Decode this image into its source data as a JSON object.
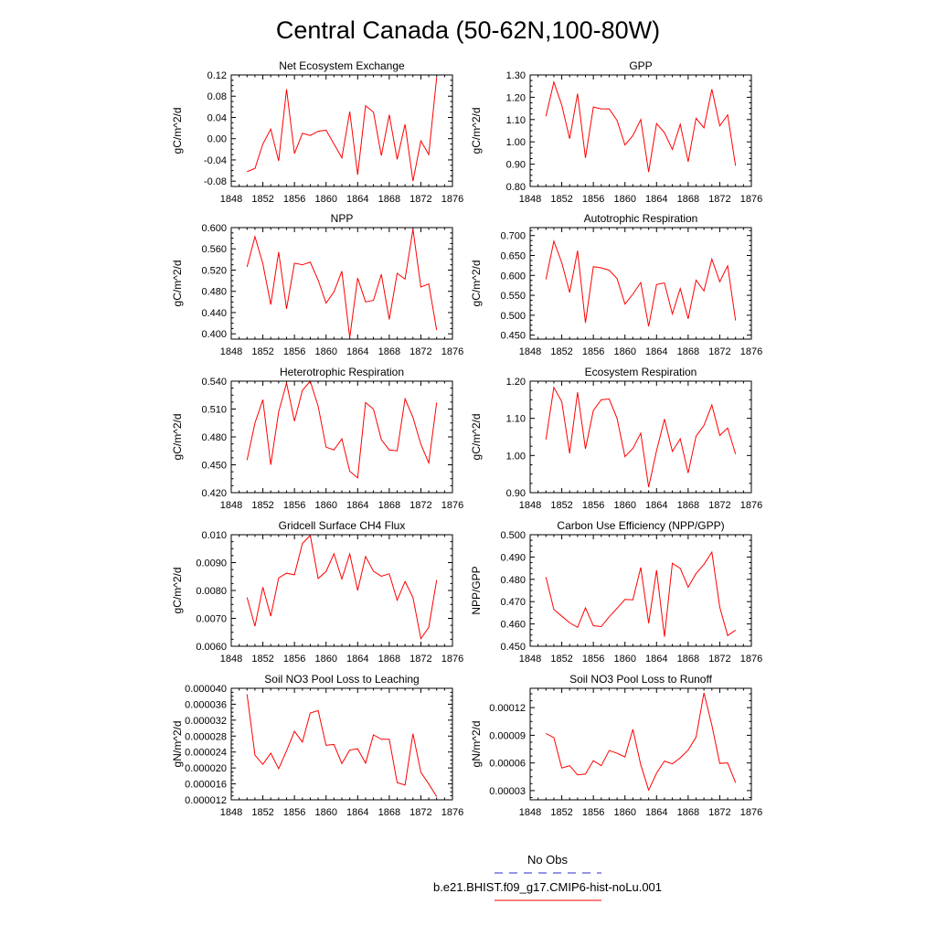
{
  "title": "Central Canada (50-62N,100-80W)",
  "colors": {
    "model": "#ff0000",
    "obs": "#2b2bd0",
    "axis": "#000000"
  },
  "legend": {
    "obs_label": "No Obs",
    "model_label": "b.e21.BHIST.f09_g17.CMIP6-hist-noLu.001"
  },
  "chart_data": [
    {
      "type": "line",
      "title": "Net Ecosystem Exchange",
      "xlabel": "",
      "ylabel": "gC/m^2/d",
      "xlim": [
        1848,
        1876
      ],
      "xticks": [
        "1848",
        "1852",
        "1856",
        "1860",
        "1864",
        "1868",
        "1872",
        "1876"
      ],
      "ylim": [
        -0.09,
        0.12
      ],
      "yticks": [
        "-0.08",
        "-0.04",
        "0.00",
        "0.04",
        "0.08",
        "0.12"
      ],
      "ytick_values": [
        -0.08,
        -0.04,
        0.0,
        0.04,
        0.08,
        0.12
      ],
      "x": [
        1850,
        1851,
        1852,
        1853,
        1854,
        1855,
        1856,
        1857,
        1858,
        1859,
        1860,
        1861,
        1862,
        1863,
        1864,
        1865,
        1866,
        1867,
        1868,
        1869,
        1870,
        1871,
        1872,
        1873,
        1874
      ],
      "series": [
        {
          "values": [
            -0.062,
            -0.056,
            -0.01,
            0.018,
            -0.042,
            0.093,
            -0.028,
            0.01,
            0.006,
            0.014,
            0.016,
            -0.01,
            -0.036,
            0.051,
            -0.068,
            0.062,
            0.05,
            -0.032,
            0.045,
            -0.039,
            0.027,
            -0.08,
            -0.004,
            -0.03,
            0.115
          ]
        }
      ]
    },
    {
      "type": "line",
      "title": "GPP",
      "xlabel": "",
      "ylabel": "gC/m^2/d",
      "xlim": [
        1848,
        1876
      ],
      "xticks": [
        "1848",
        "1852",
        "1856",
        "1860",
        "1864",
        "1868",
        "1872",
        "1876"
      ],
      "ylim": [
        0.8,
        1.3
      ],
      "yticks": [
        "0.80",
        "0.90",
        "1.00",
        "1.10",
        "1.20",
        "1.30"
      ],
      "ytick_values": [
        0.8,
        0.9,
        1.0,
        1.1,
        1.2,
        1.3
      ],
      "x": [
        1850,
        1851,
        1852,
        1853,
        1854,
        1855,
        1856,
        1857,
        1858,
        1859,
        1860,
        1861,
        1862,
        1863,
        1864,
        1865,
        1866,
        1867,
        1868,
        1869,
        1870,
        1871,
        1872,
        1873,
        1874
      ],
      "series": [
        {
          "values": [
            1.115,
            1.268,
            1.165,
            1.014,
            1.216,
            0.928,
            1.156,
            1.148,
            1.148,
            1.096,
            0.986,
            1.028,
            1.1,
            0.865,
            1.082,
            1.041,
            0.966,
            1.079,
            0.911,
            1.106,
            1.063,
            1.236,
            1.072,
            1.121,
            0.893
          ]
        }
      ]
    },
    {
      "type": "line",
      "title": "NPP",
      "xlabel": "",
      "ylabel": "gC/m^2/d",
      "xlim": [
        1848,
        1876
      ],
      "xticks": [
        "1848",
        "1852",
        "1856",
        "1860",
        "1864",
        "1868",
        "1872",
        "1876"
      ],
      "ylim": [
        0.39,
        0.6
      ],
      "yticks": [
        "0.400",
        "0.440",
        "0.480",
        "0.520",
        "0.560",
        "0.600"
      ],
      "ytick_values": [
        0.4,
        0.44,
        0.48,
        0.52,
        0.56,
        0.6
      ],
      "x": [
        1850,
        1851,
        1852,
        1853,
        1854,
        1855,
        1856,
        1857,
        1858,
        1859,
        1860,
        1861,
        1862,
        1863,
        1864,
        1865,
        1866,
        1867,
        1868,
        1869,
        1870,
        1871,
        1872,
        1873,
        1874
      ],
      "series": [
        {
          "values": [
            0.526,
            0.583,
            0.532,
            0.455,
            0.554,
            0.447,
            0.533,
            0.53,
            0.535,
            0.501,
            0.458,
            0.479,
            0.518,
            0.393,
            0.505,
            0.46,
            0.463,
            0.512,
            0.427,
            0.514,
            0.503,
            0.597,
            0.488,
            0.494,
            0.407
          ]
        }
      ]
    },
    {
      "type": "line",
      "title": "Autotrophic Respiration",
      "xlabel": "",
      "ylabel": "gC/m^2/d",
      "xlim": [
        1848,
        1876
      ],
      "xticks": [
        "1848",
        "1852",
        "1856",
        "1860",
        "1864",
        "1868",
        "1872",
        "1876"
      ],
      "ylim": [
        0.44,
        0.72
      ],
      "yticks": [
        "0.450",
        "0.500",
        "0.550",
        "0.600",
        "0.650",
        "0.700"
      ],
      "ytick_values": [
        0.45,
        0.5,
        0.55,
        0.6,
        0.65,
        0.7
      ],
      "x": [
        1850,
        1851,
        1852,
        1853,
        1854,
        1855,
        1856,
        1857,
        1858,
        1859,
        1860,
        1861,
        1862,
        1863,
        1864,
        1865,
        1866,
        1867,
        1868,
        1869,
        1870,
        1871,
        1872,
        1873,
        1874
      ],
      "series": [
        {
          "values": [
            0.59,
            0.686,
            0.632,
            0.557,
            0.662,
            0.481,
            0.622,
            0.619,
            0.613,
            0.592,
            0.528,
            0.553,
            0.582,
            0.472,
            0.577,
            0.581,
            0.503,
            0.567,
            0.491,
            0.588,
            0.561,
            0.641,
            0.584,
            0.624,
            0.487
          ]
        }
      ]
    },
    {
      "type": "line",
      "title": "Heterotrophic Respiration",
      "xlabel": "",
      "ylabel": "gC/m^2/d",
      "xlim": [
        1848,
        1876
      ],
      "xticks": [
        "1848",
        "1852",
        "1856",
        "1860",
        "1864",
        "1868",
        "1872",
        "1876"
      ],
      "ylim": [
        0.42,
        0.54
      ],
      "yticks": [
        "0.420",
        "0.450",
        "0.480",
        "0.510",
        "0.540"
      ],
      "ytick_values": [
        0.42,
        0.45,
        0.48,
        0.51,
        0.54
      ],
      "x": [
        1850,
        1851,
        1852,
        1853,
        1854,
        1855,
        1856,
        1857,
        1858,
        1859,
        1860,
        1861,
        1862,
        1863,
        1864,
        1865,
        1866,
        1867,
        1868,
        1869,
        1870,
        1871,
        1872,
        1873,
        1874
      ],
      "series": [
        {
          "values": [
            0.455,
            0.495,
            0.52,
            0.45,
            0.507,
            0.538,
            0.497,
            0.53,
            0.54,
            0.513,
            0.469,
            0.466,
            0.478,
            0.443,
            0.436,
            0.517,
            0.51,
            0.477,
            0.466,
            0.465,
            0.521,
            0.501,
            0.472,
            0.452,
            0.517
          ]
        }
      ]
    },
    {
      "type": "line",
      "title": "Ecosystem Respiration",
      "xlabel": "",
      "ylabel": "gC/m^2/d",
      "xlim": [
        1848,
        1876
      ],
      "xticks": [
        "1848",
        "1852",
        "1856",
        "1860",
        "1864",
        "1868",
        "1872",
        "1876"
      ],
      "ylim": [
        0.9,
        1.2
      ],
      "yticks": [
        "0.90",
        "1.00",
        "1.10",
        "1.20"
      ],
      "ytick_values": [
        0.9,
        1.0,
        1.1,
        1.2
      ],
      "x": [
        1850,
        1851,
        1852,
        1853,
        1854,
        1855,
        1856,
        1857,
        1858,
        1859,
        1860,
        1861,
        1862,
        1863,
        1864,
        1865,
        1866,
        1867,
        1868,
        1869,
        1870,
        1871,
        1872,
        1873,
        1874
      ],
      "series": [
        {
          "values": [
            1.043,
            1.183,
            1.145,
            1.006,
            1.17,
            1.018,
            1.121,
            1.15,
            1.152,
            1.1,
            0.997,
            1.019,
            1.06,
            0.915,
            1.013,
            1.098,
            1.011,
            1.045,
            0.953,
            1.052,
            1.081,
            1.136,
            1.054,
            1.074,
            1.004
          ]
        }
      ]
    },
    {
      "type": "line",
      "title": "Gridcell Surface CH4 Flux",
      "xlabel": "",
      "ylabel": "gC/m^2/d",
      "xlim": [
        1848,
        1876
      ],
      "xticks": [
        "1848",
        "1852",
        "1856",
        "1860",
        "1864",
        "1868",
        "1872",
        "1876"
      ],
      "ylim": [
        0.006,
        0.01
      ],
      "yticks": [
        "0.0060",
        "0.0070",
        "0.0080",
        "0.0090",
        "0.010"
      ],
      "ytick_values": [
        0.006,
        0.007,
        0.008,
        0.009,
        0.01
      ],
      "x": [
        1850,
        1851,
        1852,
        1853,
        1854,
        1855,
        1856,
        1857,
        1858,
        1859,
        1860,
        1861,
        1862,
        1863,
        1864,
        1865,
        1866,
        1867,
        1868,
        1869,
        1870,
        1871,
        1872,
        1873,
        1874
      ],
      "series": [
        {
          "values": [
            0.00775,
            0.00672,
            0.00812,
            0.00708,
            0.00845,
            0.00862,
            0.00856,
            0.00968,
            0.00998,
            0.00843,
            0.00868,
            0.00932,
            0.00841,
            0.00931,
            0.008,
            0.00922,
            0.00869,
            0.00851,
            0.0086,
            0.00765,
            0.00832,
            0.00775,
            0.00627,
            0.00668,
            0.00837
          ]
        }
      ]
    },
    {
      "type": "line",
      "title": "Carbon Use Efficiency (NPP/GPP)",
      "xlabel": "",
      "ylabel": "NPP/GPP",
      "xlim": [
        1848,
        1876
      ],
      "xticks": [
        "1848",
        "1852",
        "1856",
        "1860",
        "1864",
        "1868",
        "1872",
        "1876"
      ],
      "ylim": [
        0.45,
        0.5
      ],
      "yticks": [
        "0.450",
        "0.460",
        "0.470",
        "0.480",
        "0.490",
        "0.500"
      ],
      "ytick_values": [
        0.45,
        0.46,
        0.47,
        0.48,
        0.49,
        0.5
      ],
      "x": [
        1850,
        1851,
        1852,
        1853,
        1854,
        1855,
        1856,
        1857,
        1858,
        1859,
        1860,
        1861,
        1862,
        1863,
        1864,
        1865,
        1866,
        1867,
        1868,
        1869,
        1870,
        1871,
        1872,
        1873,
        1874
      ],
      "series": [
        {
          "values": [
            0.481,
            0.4665,
            0.4635,
            0.4605,
            0.4585,
            0.4672,
            0.4592,
            0.4588,
            0.4632,
            0.467,
            0.471,
            0.4708,
            0.4853,
            0.4603,
            0.4841,
            0.4543,
            0.4872,
            0.4849,
            0.4765,
            0.4826,
            0.4867,
            0.4922,
            0.4675,
            0.4548,
            0.4572
          ]
        }
      ]
    },
    {
      "type": "line",
      "title": "Soil NO3 Pool Loss to Leaching",
      "xlabel": "",
      "ylabel": "gN/m^2/d",
      "xlim": [
        1848,
        1876
      ],
      "xticks": [
        "1848",
        "1852",
        "1856",
        "1860",
        "1864",
        "1868",
        "1872",
        "1876"
      ],
      "ylim": [
        1.2e-05,
        4e-05
      ],
      "yticks": [
        "0.000012",
        "0.000016",
        "0.000020",
        "0.000024",
        "0.000028",
        "0.000032",
        "0.000036",
        "0.000040"
      ],
      "ytick_values": [
        1.2e-05,
        1.6e-05,
        2e-05,
        2.4e-05,
        2.8e-05,
        3.2e-05,
        3.6e-05,
        4e-05
      ],
      "x": [
        1850,
        1851,
        1852,
        1853,
        1854,
        1855,
        1856,
        1857,
        1858,
        1859,
        1860,
        1861,
        1862,
        1863,
        1864,
        1865,
        1866,
        1867,
        1868,
        1869,
        1870,
        1871,
        1872,
        1873,
        1874
      ],
      "series": [
        {
          "values": [
            3.85e-05,
            2.32e-05,
            2.09e-05,
            2.37e-05,
            1.98e-05,
            2.43e-05,
            2.92e-05,
            2.65e-05,
            3.38e-05,
            3.44e-05,
            2.57e-05,
            2.59e-05,
            2.11e-05,
            2.45e-05,
            2.48e-05,
            2.12e-05,
            2.83e-05,
            2.72e-05,
            2.72e-05,
            1.63e-05,
            1.57e-05,
            2.86e-05,
            1.89e-05,
            1.6e-05,
            1.28e-05
          ]
        }
      ]
    },
    {
      "type": "line",
      "title": "Soil NO3 Pool Loss to Runoff",
      "xlabel": "",
      "ylabel": "gN/m^2/d",
      "xlim": [
        1848,
        1876
      ],
      "xticks": [
        "1848",
        "1852",
        "1856",
        "1860",
        "1864",
        "1868",
        "1872",
        "1876"
      ],
      "ylim": [
        2e-05,
        0.000141
      ],
      "yticks": [
        "0.00003",
        "0.00006",
        "0.00009",
        "0.00012"
      ],
      "ytick_values": [
        3e-05,
        6e-05,
        9e-05,
        0.00012
      ],
      "x": [
        1850,
        1851,
        1852,
        1853,
        1854,
        1855,
        1856,
        1857,
        1858,
        1859,
        1860,
        1861,
        1862,
        1863,
        1864,
        1865,
        1866,
        1867,
        1868,
        1869,
        1870,
        1871,
        1872,
        1873,
        1874
      ],
      "series": [
        {
          "values": [
            9.2e-05,
            8.75e-05,
            5.45e-05,
            5.7e-05,
            4.7e-05,
            4.8e-05,
            6.25e-05,
            5.7e-05,
            7.35e-05,
            7.05e-05,
            6.65e-05,
            9.65e-05,
            5.8e-05,
            3.05e-05,
            4.9e-05,
            6.2e-05,
            5.9e-05,
            6.55e-05,
            7.4e-05,
            8.8e-05,
            0.000136,
            0.000101,
            5.95e-05,
            6e-05,
            3.85e-05
          ]
        }
      ]
    }
  ]
}
